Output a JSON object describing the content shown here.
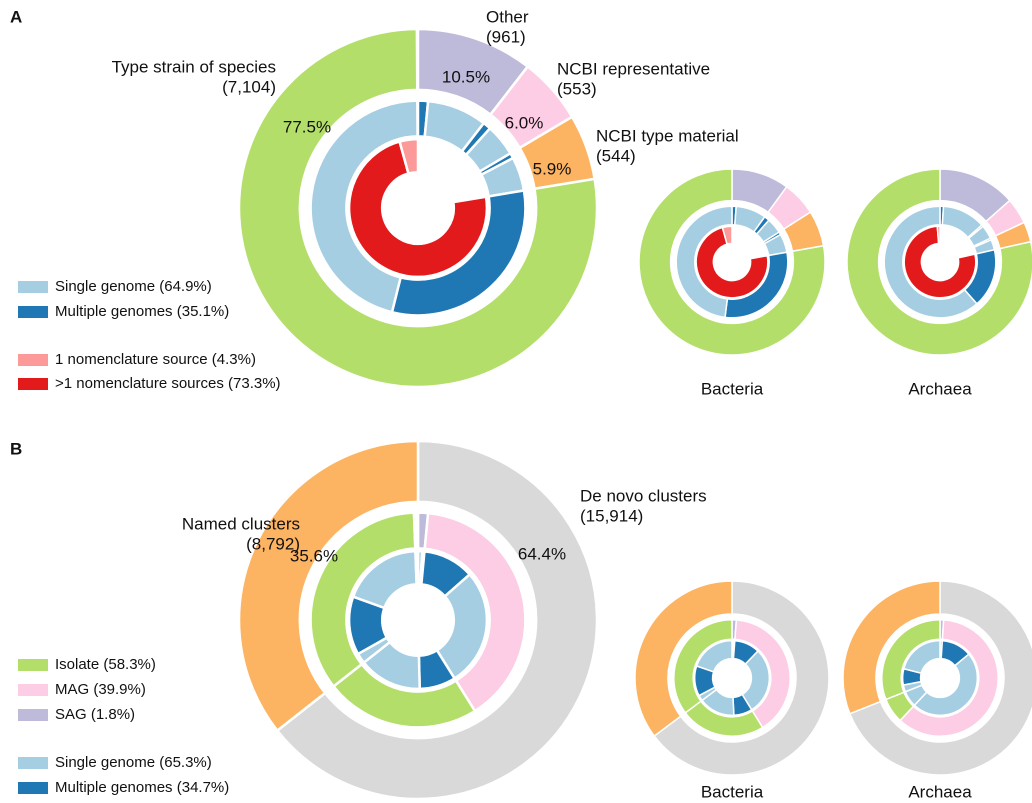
{
  "panels": [
    {
      "letter": "A",
      "legend": [
        {
          "name": "Single genome (64.9%)",
          "color": "#a6cee3"
        },
        {
          "name": "Multiple genomes (35.1%)",
          "color": "#1f78b4"
        },
        {
          "name": "1 nomenclature source (4.3%)",
          "color": "#fb9a99"
        },
        {
          "name": ">1 nomenclature sources (73.3%)",
          "color": "#e31a1c"
        }
      ]
    },
    {
      "letter": "B",
      "legend": [
        {
          "name": "Isolate (58.3%)",
          "color": "#b3de69"
        },
        {
          "name": "MAG (39.9%)",
          "color": "#fccde5"
        },
        {
          "name": "SAG (1.8%)",
          "color": "#bebada"
        },
        {
          "name": "Single genome (65.3%)",
          "color": "#a6cee3"
        },
        {
          "name": "Multiple genomes (34.7%)",
          "color": "#1f78b4"
        }
      ]
    }
  ],
  "chart_data": [
    {
      "type": "donut",
      "segments": [
        {
          "name": "Other",
          "count": 961,
          "count_label": "(961)",
          "value": 10.5,
          "value_label": "10.5%",
          "color": "#bebada",
          "middle": [
            {
              "value": 1.5,
              "color": "#1f78b4"
            },
            {
              "value": 9.0,
              "color": "#a6cee3"
            }
          ]
        },
        {
          "name": "NCBI representative",
          "count": 553,
          "count_label": "(553)",
          "value": 6.0,
          "value_label": "6.0%",
          "color": "#fccde5",
          "middle": [
            {
              "value": 1.2,
              "color": "#1f78b4"
            },
            {
              "value": 4.8,
              "color": "#a6cee3"
            }
          ]
        },
        {
          "name": "NCBI type material",
          "count": 544,
          "count_label": "(544)",
          "value": 5.9,
          "value_label": "5.9%",
          "color": "#fdb462",
          "middle": [
            {
              "value": 0.8,
              "color": "#1f78b4"
            },
            {
              "value": 5.1,
              "color": "#a6cee3"
            }
          ]
        },
        {
          "name": "Type strain of species",
          "count": 7104,
          "count_label": "(7,104)",
          "value": 77.5,
          "value_label": "77.5%",
          "color": "#b3de69",
          "middle": [
            {
              "value": 31.5,
              "color": "#1f78b4"
            },
            {
              "value": 46.0,
              "color": "#a6cee3"
            }
          ],
          "inner": [
            {
              "value": 73.3,
              "color": "#e31a1c"
            },
            {
              "value": 4.3,
              "color": "#fb9a99"
            }
          ]
        }
      ]
    },
    {
      "type": "donut",
      "title": "Bacteria",
      "segments": [
        {
          "value": 10.0,
          "color": "#bebada",
          "middle": [
            {
              "value": 1.2,
              "color": "#1f78b4"
            },
            {
              "value": 8.8,
              "color": "#a6cee3"
            }
          ]
        },
        {
          "value": 6.0,
          "color": "#fccde5",
          "middle": [
            {
              "value": 1.5,
              "color": "#1f78b4"
            },
            {
              "value": 4.5,
              "color": "#a6cee3"
            }
          ]
        },
        {
          "value": 6.2,
          "color": "#fdb462",
          "middle": [
            {
              "value": 0.8,
              "color": "#1f78b4"
            },
            {
              "value": 5.4,
              "color": "#a6cee3"
            }
          ]
        },
        {
          "value": 77.8,
          "color": "#b3de69",
          "middle": [
            {
              "value": 29.8,
              "color": "#1f78b4"
            },
            {
              "value": 48.0,
              "color": "#a6cee3"
            }
          ],
          "inner": [
            {
              "value": 73.5,
              "color": "#e31a1c"
            },
            {
              "value": 4.3,
              "color": "#fb9a99"
            }
          ]
        }
      ]
    },
    {
      "type": "donut",
      "title": "Archaea",
      "segments": [
        {
          "value": 13.5,
          "color": "#bebada",
          "middle": [
            {
              "value": 1.0,
              "color": "#1f78b4"
            },
            {
              "value": 12.5,
              "color": "#a6cee3"
            }
          ]
        },
        {
          "value": 4.5,
          "color": "#fccde5",
          "middle": [
            {
              "value": 0.5,
              "color": "#1f78b4"
            },
            {
              "value": 4.0,
              "color": "#a6cee3"
            }
          ]
        },
        {
          "value": 3.5,
          "color": "#fdb462",
          "middle": [
            {
              "value": 0.5,
              "color": "#1f78b4"
            },
            {
              "value": 3.0,
              "color": "#a6cee3"
            }
          ]
        },
        {
          "value": 78.5,
          "color": "#b3de69",
          "middle": [
            {
              "value": 17.0,
              "color": "#1f78b4"
            },
            {
              "value": 61.5,
              "color": "#a6cee3"
            }
          ],
          "inner": [
            {
              "value": 77.3,
              "color": "#e31a1c"
            },
            {
              "value": 1.2,
              "color": "#fb9a99"
            }
          ]
        }
      ]
    },
    {
      "type": "donut",
      "segments": [
        {
          "name": "De novo clusters",
          "count": 15914,
          "count_label": "(15,914)",
          "value": 64.4,
          "value_label": "64.4%",
          "color": "#d9d9d9",
          "middle": [
            {
              "value": 1.5,
              "color": "#bebada"
            },
            {
              "value": 39.6,
              "color": "#fccde5"
            },
            {
              "value": 23.3,
              "color": "#b3de69"
            }
          ],
          "inner": [
            {
              "value": 1.0,
              "color": "#a6cee3"
            },
            {
              "value": 0.5,
              "color": "#1f78b4"
            },
            {
              "value": 12.0,
              "color": "#1f78b4"
            },
            {
              "value": 27.6,
              "color": "#a6cee3"
            },
            {
              "value": 8.5,
              "color": "#1f78b4"
            },
            {
              "value": 14.8,
              "color": "#a6cee3"
            }
          ]
        },
        {
          "name": "Named clusters",
          "count": 8792,
          "count_label": "(8,792)",
          "value": 35.6,
          "value_label": "35.6%",
          "color": "#fdb462",
          "middle": [
            {
              "value": 35.0,
              "color": "#b3de69"
            },
            {
              "value": 0.3,
              "color": "#fccde5"
            },
            {
              "value": 0.3,
              "color": "#bebada"
            }
          ],
          "inner": [
            {
              "value": 2.4,
              "color": "#a6cee3"
            },
            {
              "value": 13.7,
              "color": "#1f78b4"
            },
            {
              "value": 18.9,
              "color": "#a6cee3"
            },
            {
              "value": 0.3,
              "color": "#a6cee3"
            },
            {
              "value": 0.3,
              "color": "#a6cee3"
            }
          ]
        }
      ]
    },
    {
      "type": "donut",
      "title": "Bacteria",
      "segments": [
        {
          "value": 64.8,
          "color": "#d9d9d9",
          "middle": [
            {
              "value": 1.2,
              "color": "#bebada"
            },
            {
              "value": 40.0,
              "color": "#fccde5"
            },
            {
              "value": 23.6,
              "color": "#b3de69"
            }
          ],
          "inner": [
            {
              "value": 0.6,
              "color": "#a6cee3"
            },
            {
              "value": 0.6,
              "color": "#1f78b4"
            },
            {
              "value": 11.0,
              "color": "#1f78b4"
            },
            {
              "value": 29.0,
              "color": "#a6cee3"
            },
            {
              "value": 8.0,
              "color": "#1f78b4"
            },
            {
              "value": 15.6,
              "color": "#a6cee3"
            }
          ]
        },
        {
          "value": 35.2,
          "color": "#fdb462",
          "middle": [
            {
              "value": 35.2,
              "color": "#b3de69"
            }
          ],
          "inner": [
            {
              "value": 2.4,
              "color": "#a6cee3"
            },
            {
              "value": 13.0,
              "color": "#1f78b4"
            },
            {
              "value": 19.8,
              "color": "#a6cee3"
            }
          ]
        }
      ]
    },
    {
      "type": "donut",
      "title": "Archaea",
      "segments": [
        {
          "value": 69.0,
          "color": "#d9d9d9",
          "middle": [
            {
              "value": 1.0,
              "color": "#bebada"
            },
            {
              "value": 61.0,
              "color": "#fccde5"
            },
            {
              "value": 7.0,
              "color": "#b3de69"
            }
          ],
          "inner": [
            {
              "value": 1.0,
              "color": "#a6cee3"
            },
            {
              "value": 13.0,
              "color": "#1f78b4"
            },
            {
              "value": 48.0,
              "color": "#a6cee3"
            },
            {
              "value": 7.0,
              "color": "#a6cee3"
            }
          ]
        },
        {
          "value": 31.0,
          "color": "#fdb462",
          "middle": [
            {
              "value": 31.0,
              "color": "#b3de69"
            }
          ],
          "inner": [
            {
              "value": 3.0,
              "color": "#a6cee3"
            },
            {
              "value": 7.0,
              "color": "#1f78b4"
            },
            {
              "value": 21.0,
              "color": "#a6cee3"
            }
          ]
        }
      ]
    }
  ]
}
